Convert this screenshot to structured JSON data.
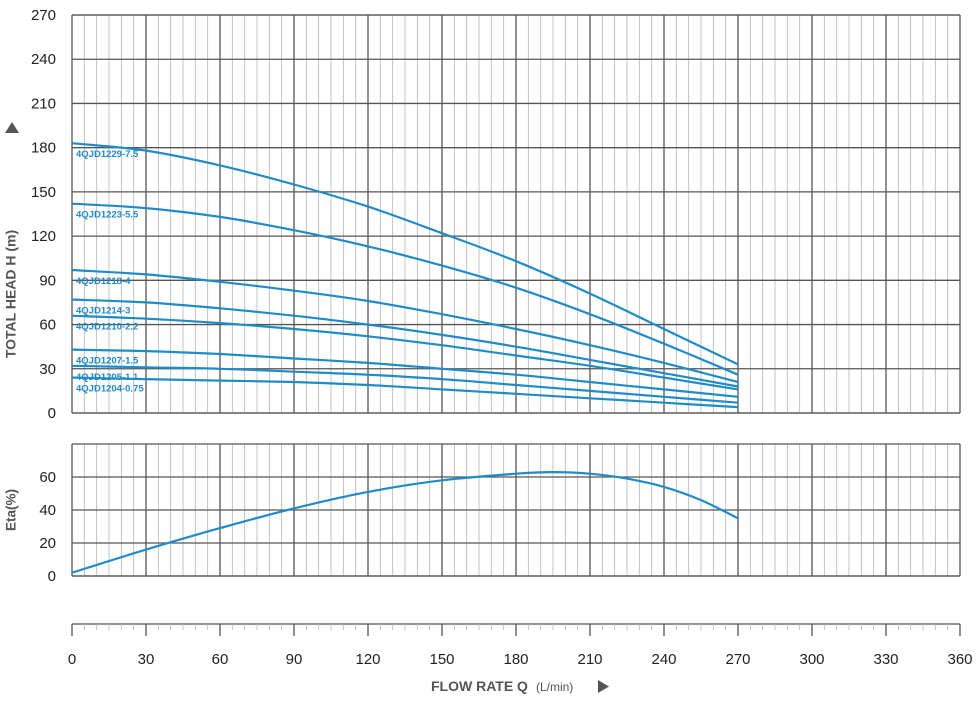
{
  "chart_data": {
    "x_axis": {
      "label": "FLOW RATE Q",
      "unit": "(L/min)",
      "range": [
        0,
        360
      ],
      "ticks": [
        0,
        30,
        60,
        90,
        120,
        150,
        180,
        210,
        240,
        270,
        300,
        330,
        360
      ],
      "minor_step": 5
    },
    "colors": {
      "curve": "#1f8bc9",
      "label": "#1f8bc9",
      "grid_major": "#555555",
      "grid_minor": "#b5b5b5",
      "axis_title": "#555555"
    },
    "charts": [
      {
        "type": "line",
        "id": "head",
        "ylabel": "TOTAL HEAD H (m)",
        "ylim": [
          0,
          270
        ],
        "yticks": [
          0,
          30,
          60,
          90,
          120,
          150,
          180,
          210,
          240,
          270
        ],
        "grid": true,
        "series": [
          {
            "name": "4QJD1229-7.5",
            "points": [
              [
                0,
                183
              ],
              [
                30,
                178
              ],
              [
                60,
                168
              ],
              [
                90,
                155
              ],
              [
                120,
                140
              ],
              [
                150,
                122
              ],
              [
                180,
                103
              ],
              [
                210,
                81
              ],
              [
                240,
                57
              ],
              [
                270,
                33
              ]
            ]
          },
          {
            "name": "4QJD1223-5.5",
            "points": [
              [
                0,
                142
              ],
              [
                30,
                139
              ],
              [
                60,
                133
              ],
              [
                90,
                124
              ],
              [
                120,
                113
              ],
              [
                150,
                100
              ],
              [
                180,
                85
              ],
              [
                210,
                67
              ],
              [
                240,
                47
              ],
              [
                270,
                26
              ]
            ]
          },
          {
            "name": "4QJD1218-4",
            "points": [
              [
                0,
                97
              ],
              [
                30,
                94
              ],
              [
                60,
                89
              ],
              [
                90,
                83
              ],
              [
                120,
                76
              ],
              [
                150,
                67
              ],
              [
                180,
                57
              ],
              [
                210,
                46
              ],
              [
                240,
                34
              ],
              [
                270,
                21
              ]
            ]
          },
          {
            "name": "4QJD1214-3",
            "points": [
              [
                0,
                77
              ],
              [
                30,
                75
              ],
              [
                60,
                71
              ],
              [
                90,
                66
              ],
              [
                120,
                60
              ],
              [
                150,
                53
              ],
              [
                180,
                45
              ],
              [
                210,
                36
              ],
              [
                240,
                27
              ],
              [
                270,
                18
              ]
            ]
          },
          {
            "name": "4QJD1210-2.2",
            "points": [
              [
                0,
                66
              ],
              [
                30,
                64
              ],
              [
                60,
                61
              ],
              [
                90,
                57
              ],
              [
                120,
                52
              ],
              [
                150,
                46
              ],
              [
                180,
                39
              ],
              [
                210,
                32
              ],
              [
                240,
                24
              ],
              [
                270,
                16
              ]
            ]
          },
          {
            "name": "4QJD1207-1.5",
            "points": [
              [
                0,
                43
              ],
              [
                30,
                42
              ],
              [
                60,
                40
              ],
              [
                90,
                37
              ],
              [
                120,
                34
              ],
              [
                150,
                30
              ],
              [
                180,
                26
              ],
              [
                210,
                21
              ],
              [
                240,
                16
              ],
              [
                270,
                11
              ]
            ]
          },
          {
            "name": "4QJD1205-1.1",
            "points": [
              [
                0,
                32
              ],
              [
                30,
                31
              ],
              [
                60,
                30
              ],
              [
                90,
                28
              ],
              [
                120,
                26
              ],
              [
                150,
                23
              ],
              [
                180,
                19
              ],
              [
                210,
                15
              ],
              [
                240,
                11
              ],
              [
                270,
                7
              ]
            ]
          },
          {
            "name": "4QJD1204-0.75",
            "points": [
              [
                0,
                24
              ],
              [
                30,
                23
              ],
              [
                60,
                22
              ],
              [
                90,
                21
              ],
              [
                120,
                19
              ],
              [
                150,
                16
              ],
              [
                180,
                13
              ],
              [
                210,
                10
              ],
              [
                240,
                7
              ],
              [
                270,
                4
              ]
            ]
          }
        ]
      },
      {
        "type": "line",
        "id": "eta",
        "ylabel": "Eta(%)",
        "ylim": [
          0,
          80
        ],
        "yticks": [
          0,
          20,
          40,
          60
        ],
        "grid": true,
        "series": [
          {
            "name": "",
            "points": [
              [
                0,
                2
              ],
              [
                30,
                16
              ],
              [
                60,
                29
              ],
              [
                90,
                41
              ],
              [
                120,
                51
              ],
              [
                150,
                58
              ],
              [
                180,
                62
              ],
              [
                195,
                63
              ],
              [
                210,
                62
              ],
              [
                225,
                59
              ],
              [
                240,
                54
              ],
              [
                255,
                46
              ],
              [
                270,
                35
              ]
            ]
          }
        ]
      }
    ]
  }
}
